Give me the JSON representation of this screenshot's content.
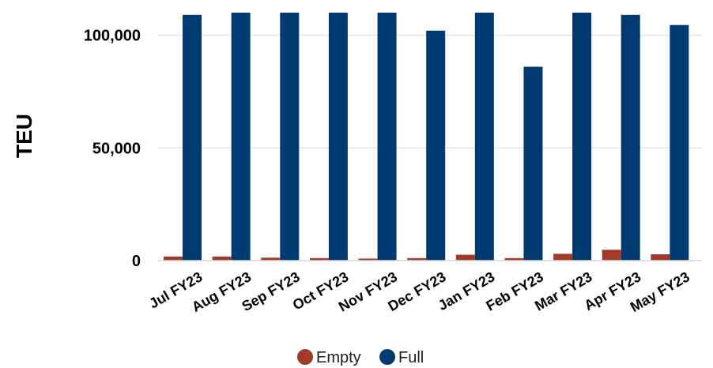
{
  "chart_data": {
    "type": "bar",
    "title": "",
    "xlabel": "",
    "ylabel": "TEU",
    "ylim": [
      0,
      110000
    ],
    "yticks": [
      0,
      50000,
      100000
    ],
    "ytick_labels": [
      "0",
      "50,000",
      "100,000"
    ],
    "grid": true,
    "legend_position": "bottom",
    "categories": [
      "Jul FY23",
      "Aug FY23",
      "Sep FY23",
      "Oct FY23",
      "Nov FY23",
      "Dec FY23",
      "Jan FY23",
      "Feb FY23",
      "Mar FY23",
      "Apr FY23",
      "May FY23"
    ],
    "series": [
      {
        "name": "Empty",
        "color": "#A23A2A",
        "values": [
          1800,
          1800,
          1300,
          1100,
          900,
          1100,
          2600,
          1100,
          3000,
          4800,
          2800
        ]
      },
      {
        "name": "Full",
        "color": "#003A70",
        "values": [
          109000,
          110000,
          110000,
          110000,
          110000,
          102000,
          110000,
          86000,
          110000,
          109000,
          104500
        ]
      }
    ]
  }
}
